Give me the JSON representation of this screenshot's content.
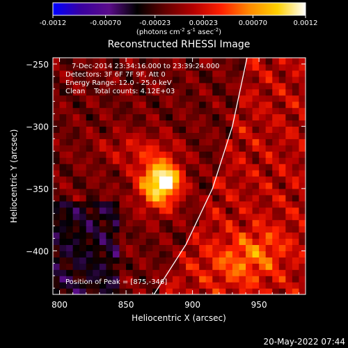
{
  "chart_data": {
    "type": "heatmap",
    "title": "Reconstructed RHESSI Image",
    "xlabel": "Heliocentric X (arcsec)",
    "ylabel": "Heliocentric Y (arcsec)",
    "xlim": [
      795,
      985
    ],
    "ylim": [
      -435,
      -245
    ],
    "xticks": [
      800,
      850,
      900,
      950
    ],
    "yticks": [
      -250,
      -300,
      -350,
      -400
    ],
    "colorbar": {
      "ticks": [
        "-0.0012",
        "-0.00070",
        "-0.00023",
        "0.00023",
        "0.00070",
        "0.0012"
      ],
      "tick_values": [
        -0.0012,
        -0.0007,
        -0.00023,
        0.00023,
        0.0007,
        0.0012
      ],
      "range": [
        -0.0012,
        0.0012
      ],
      "unit_label": {
        "pre": "(photons cm",
        "exp1": "-2",
        "mid1": " s",
        "exp2": "-1",
        "mid2": " asec",
        "exp3": "-2",
        "post": ")"
      },
      "colors": [
        "#0000ff",
        "#3a00a0",
        "#5a0c8a",
        "#000000",
        "#640000",
        "#b40000",
        "#ff2000",
        "#ff8a00",
        "#ffd000",
        "#ffffff"
      ]
    },
    "annotations": [
      "7-Dec-2014 23:34:16.000 to 23:39:24.000",
      "Detectors: 3F 6F 7F 9F, Att 0",
      "Energy Range: 12.0 - 25.0 keV",
      "Clean    Total counts: 4.12E+03"
    ],
    "peak_label": "Position of Peak = [875,-346]",
    "peak": {
      "x": 875,
      "y": -346,
      "value": 0.0012
    },
    "sources": [
      {
        "x": 875,
        "y": -346,
        "sx": 11,
        "sy": 14,
        "amp": 0.00115
      },
      {
        "x": 882,
        "y": -342,
        "sx": 6,
        "sy": 6,
        "amp": 0.0005
      },
      {
        "x": 858,
        "y": -318,
        "sx": 20,
        "sy": 10,
        "amp": 0.0003
      },
      {
        "x": 935,
        "y": -410,
        "sx": 18,
        "sy": 14,
        "amp": 0.0004
      },
      {
        "x": 955,
        "y": -395,
        "sx": 14,
        "sy": 12,
        "amp": 0.00025
      }
    ],
    "limb_curve": [
      [
        871,
        -435
      ],
      [
        895,
        -395
      ],
      [
        915,
        -350
      ],
      [
        930,
        -300
      ],
      [
        938,
        -260
      ],
      [
        941,
        -245
      ]
    ],
    "timestamp": "20-May-2022 07:44"
  }
}
